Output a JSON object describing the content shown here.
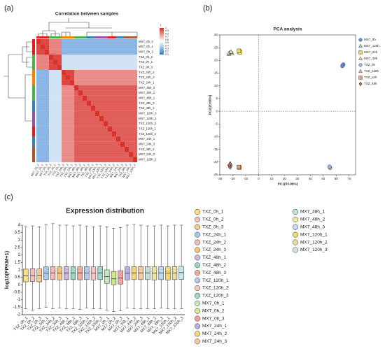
{
  "chart_data": [
    {
      "type": "heatmap",
      "panel_label": "(a)",
      "title": "Correlation between samples",
      "labels": [
        "MX7_0h_2",
        "MX7_0h_1",
        "MX7_0h_3",
        "TXZ_0h_2",
        "TXZ_0h_1",
        "TXZ_0h_3",
        "TXZ_24h_2",
        "TXZ_24h_3",
        "TXZ_24h_1",
        "MX7_48h_3",
        "MX7_48h_2",
        "MX7_48h_1",
        "TXZ_48h_3",
        "TXZ_48h_1",
        "MX7_120h_3",
        "MX7_120h_1",
        "TXZ_120h_3",
        "TXZ_120h_1",
        "TXZ_120h_2",
        "MX7_24h_1",
        "MX7_24h_3",
        "TXZ_48h_2",
        "MX7_24h_2",
        "MX7_120h_2"
      ],
      "group_colors": [
        "#e41a1c",
        "#e41a1c",
        "#e41a1c",
        "#4daf4a",
        "#4daf4a",
        "#4daf4a",
        "#ff7f00",
        "#ff7f00",
        "#ff7f00",
        "#4daf4a",
        "#4daf4a",
        "#4daf4a",
        "#377eb8",
        "#377eb8",
        "#984ea3",
        "#984ea3",
        "#984ea3",
        "#e41a1c",
        "#e41a1c",
        "#377eb8",
        "#377eb8",
        "#a65628",
        "#a65628",
        "#a65628"
      ],
      "values": [
        [
          1,
          0.95,
          0.95,
          0.82,
          0.82,
          0.82,
          0.3,
          0.3,
          0.3,
          0.3,
          0.3,
          0.3,
          0.3,
          0.3,
          0.3,
          0.3,
          0.3,
          0.3,
          0.3,
          0.3,
          0.3,
          0.3,
          0.3,
          0.3
        ],
        [
          0.95,
          1,
          0.95,
          0.82,
          0.82,
          0.82,
          0.3,
          0.3,
          0.3,
          0.3,
          0.3,
          0.3,
          0.3,
          0.3,
          0.3,
          0.3,
          0.3,
          0.3,
          0.3,
          0.3,
          0.3,
          0.3,
          0.3,
          0.3
        ],
        [
          0.95,
          0.95,
          1,
          0.82,
          0.82,
          0.82,
          0.3,
          0.3,
          0.3,
          0.3,
          0.3,
          0.3,
          0.3,
          0.3,
          0.3,
          0.3,
          0.3,
          0.3,
          0.3,
          0.3,
          0.3,
          0.3,
          0.3,
          0.3
        ],
        [
          0.82,
          0.82,
          0.82,
          1,
          0.95,
          0.95,
          0.45,
          0.45,
          0.45,
          0.45,
          0.45,
          0.45,
          0.45,
          0.45,
          0.45,
          0.45,
          0.45,
          0.45,
          0.45,
          0.45,
          0.45,
          0.45,
          0.45,
          0.45
        ],
        [
          0.82,
          0.82,
          0.82,
          0.95,
          1,
          0.95,
          0.45,
          0.45,
          0.45,
          0.45,
          0.45,
          0.45,
          0.45,
          0.45,
          0.45,
          0.45,
          0.45,
          0.45,
          0.45,
          0.45,
          0.45,
          0.45,
          0.45,
          0.45
        ],
        [
          0.82,
          0.82,
          0.82,
          0.95,
          0.95,
          1,
          0.45,
          0.45,
          0.45,
          0.45,
          0.45,
          0.45,
          0.45,
          0.45,
          0.45,
          0.45,
          0.45,
          0.45,
          0.45,
          0.45,
          0.45,
          0.45,
          0.45,
          0.45
        ],
        [
          0.3,
          0.3,
          0.3,
          0.45,
          0.45,
          0.45,
          1,
          0.95,
          0.95,
          0.8,
          0.8,
          0.8,
          0.8,
          0.8,
          0.8,
          0.8,
          0.8,
          0.8,
          0.8,
          0.8,
          0.8,
          0.8,
          0.8,
          0.8
        ],
        [
          0.3,
          0.3,
          0.3,
          0.45,
          0.45,
          0.45,
          0.95,
          1,
          0.95,
          0.8,
          0.8,
          0.8,
          0.8,
          0.8,
          0.8,
          0.8,
          0.8,
          0.8,
          0.8,
          0.8,
          0.8,
          0.8,
          0.8,
          0.8
        ],
        [
          0.3,
          0.3,
          0.3,
          0.45,
          0.45,
          0.45,
          0.95,
          0.95,
          1,
          0.8,
          0.8,
          0.8,
          0.8,
          0.8,
          0.8,
          0.8,
          0.8,
          0.8,
          0.8,
          0.8,
          0.8,
          0.8,
          0.8,
          0.8
        ],
        [
          0.3,
          0.3,
          0.3,
          0.45,
          0.45,
          0.45,
          0.8,
          0.8,
          0.8,
          1,
          0.9,
          0.9,
          0.9,
          0.9,
          0.9,
          0.9,
          0.9,
          0.9,
          0.9,
          0.9,
          0.9,
          0.9,
          0.9,
          0.9
        ],
        [
          0.3,
          0.3,
          0.3,
          0.45,
          0.45,
          0.45,
          0.8,
          0.8,
          0.8,
          0.9,
          1,
          0.9,
          0.9,
          0.9,
          0.9,
          0.9,
          0.9,
          0.9,
          0.9,
          0.9,
          0.9,
          0.9,
          0.9,
          0.9
        ],
        [
          0.3,
          0.3,
          0.3,
          0.45,
          0.45,
          0.45,
          0.8,
          0.8,
          0.8,
          0.9,
          0.9,
          1,
          0.9,
          0.9,
          0.9,
          0.9,
          0.9,
          0.9,
          0.9,
          0.9,
          0.9,
          0.9,
          0.9,
          0.9
        ],
        [
          0.3,
          0.3,
          0.3,
          0.45,
          0.45,
          0.45,
          0.8,
          0.8,
          0.8,
          0.9,
          0.9,
          0.9,
          1,
          0.9,
          0.9,
          0.9,
          0.9,
          0.9,
          0.9,
          0.9,
          0.9,
          0.9,
          0.9,
          0.9
        ],
        [
          0.3,
          0.3,
          0.3,
          0.45,
          0.45,
          0.45,
          0.8,
          0.8,
          0.8,
          0.9,
          0.9,
          0.9,
          0.9,
          1,
          0.9,
          0.9,
          0.9,
          0.9,
          0.9,
          0.9,
          0.9,
          0.9,
          0.9,
          0.9
        ],
        [
          0.3,
          0.3,
          0.3,
          0.45,
          0.45,
          0.45,
          0.8,
          0.8,
          0.8,
          0.9,
          0.9,
          0.9,
          0.9,
          0.9,
          1,
          0.9,
          0.9,
          0.9,
          0.9,
          0.9,
          0.9,
          0.9,
          0.9,
          0.9
        ],
        [
          0.3,
          0.3,
          0.3,
          0.45,
          0.45,
          0.45,
          0.8,
          0.8,
          0.8,
          0.9,
          0.9,
          0.9,
          0.9,
          0.9,
          0.9,
          1,
          0.9,
          0.9,
          0.9,
          0.9,
          0.9,
          0.9,
          0.9,
          0.9
        ],
        [
          0.3,
          0.3,
          0.3,
          0.45,
          0.45,
          0.45,
          0.8,
          0.8,
          0.8,
          0.9,
          0.9,
          0.9,
          0.9,
          0.9,
          0.9,
          0.9,
          1,
          0.9,
          0.9,
          0.9,
          0.9,
          0.9,
          0.9,
          0.9
        ],
        [
          0.3,
          0.3,
          0.3,
          0.45,
          0.45,
          0.45,
          0.8,
          0.8,
          0.8,
          0.9,
          0.9,
          0.9,
          0.9,
          0.9,
          0.9,
          0.9,
          0.9,
          1,
          0.9,
          0.9,
          0.9,
          0.9,
          0.9,
          0.9
        ],
        [
          0.3,
          0.3,
          0.3,
          0.45,
          0.45,
          0.45,
          0.8,
          0.8,
          0.8,
          0.9,
          0.9,
          0.9,
          0.9,
          0.9,
          0.9,
          0.9,
          0.9,
          0.9,
          1,
          0.9,
          0.9,
          0.9,
          0.9,
          0.9
        ],
        [
          0.3,
          0.3,
          0.3,
          0.45,
          0.45,
          0.45,
          0.8,
          0.8,
          0.8,
          0.9,
          0.9,
          0.9,
          0.9,
          0.9,
          0.9,
          0.9,
          0.9,
          0.9,
          0.9,
          1,
          0.9,
          0.9,
          0.9,
          0.9
        ],
        [
          0.3,
          0.3,
          0.3,
          0.45,
          0.45,
          0.45,
          0.8,
          0.8,
          0.8,
          0.9,
          0.9,
          0.9,
          0.9,
          0.9,
          0.9,
          0.9,
          0.9,
          0.9,
          0.9,
          0.9,
          1,
          0.9,
          0.9,
          0.9
        ],
        [
          0.3,
          0.3,
          0.3,
          0.45,
          0.45,
          0.45,
          0.8,
          0.8,
          0.8,
          0.9,
          0.9,
          0.9,
          0.9,
          0.9,
          0.9,
          0.9,
          0.9,
          0.9,
          0.9,
          0.9,
          0.9,
          1,
          0.9,
          0.9
        ],
        [
          0.3,
          0.3,
          0.3,
          0.45,
          0.45,
          0.45,
          0.8,
          0.8,
          0.8,
          0.9,
          0.9,
          0.9,
          0.9,
          0.9,
          0.9,
          0.9,
          0.9,
          0.9,
          0.9,
          0.9,
          0.9,
          0.9,
          1,
          0.9
        ],
        [
          0.3,
          0.3,
          0.3,
          0.45,
          0.45,
          0.45,
          0.8,
          0.8,
          0.8,
          0.9,
          0.9,
          0.9,
          0.9,
          0.9,
          0.9,
          0.9,
          0.9,
          0.9,
          0.9,
          0.9,
          0.9,
          0.9,
          0.9,
          1
        ]
      ],
      "zlim": [
        0.1,
        1
      ],
      "colorscale": [
        "#2f7bd0",
        "#ffffff",
        "#d9312b"
      ],
      "legend_title": "r",
      "colorbar_ticks": [
        1,
        0.9,
        0.8,
        0.7,
        0.6,
        0.5,
        0.4,
        0.3,
        0.2,
        0.1
      ]
    },
    {
      "type": "scatter",
      "panel_label": "(b)",
      "title": "PCA analysis",
      "xlabel": "PC1(53.99%)",
      "ylabel": "PC2(20.95%)",
      "xlim": [
        -30,
        75
      ],
      "ylim": [
        -25,
        30
      ],
      "xticks": [
        -30,
        -20,
        -10,
        0,
        10,
        20,
        30,
        40,
        50,
        60,
        70
      ],
      "yticks": [
        -25,
        -20,
        -15,
        -10,
        -5,
        0,
        5,
        10,
        15,
        20,
        25,
        30
      ],
      "zero_lines": true,
      "series": [
        {
          "name": "MX7_0h",
          "color": "#5b8fd6",
          "marker": "circle",
          "x": [
            65,
            65.5,
            64.8
          ],
          "y": [
            18,
            18.4,
            17.8
          ]
        },
        {
          "name": "MX7_120h",
          "color": "#a8d4ee",
          "marker": "triangle",
          "x": [
            -23,
            -22.5,
            -22.8
          ],
          "y": [
            22.5,
            23,
            22.7
          ]
        },
        {
          "name": "MX7_24h",
          "color": "#f6d84a",
          "marker": "square",
          "x": [
            -15,
            -14.5,
            -15.2
          ],
          "y": [
            23.5,
            23.2,
            23.8
          ]
        },
        {
          "name": "MX7_48h",
          "color": "#efe48a",
          "marker": "triangle",
          "x": [
            -21,
            -20.5,
            -21.3
          ],
          "y": [
            23,
            22.8,
            23.3
          ]
        },
        {
          "name": "TXZ_0h",
          "color": "#9ab8e0",
          "marker": "circle",
          "x": [
            55,
            55.3,
            54.8
          ],
          "y": [
            -22,
            -22.3,
            -21.8
          ]
        },
        {
          "name": "TXZ_120h",
          "color": "#f4b6c2",
          "marker": "triangle",
          "x": [
            -22,
            -21.6,
            -22.3
          ],
          "y": [
            -20.5,
            -21,
            -20.8
          ]
        },
        {
          "name": "TXZ_24h",
          "color": "#e8a070",
          "marker": "square",
          "x": [
            -15,
            -14.8,
            -15.3
          ],
          "y": [
            -22,
            -22.2,
            -21.9
          ]
        },
        {
          "name": "TXZ_48h",
          "color": "#b5655a",
          "marker": "diamond",
          "x": [
            -22.5,
            -22,
            -22.7
          ],
          "y": [
            -21.5,
            -22,
            -21.2
          ]
        }
      ]
    },
    {
      "type": "box",
      "panel_label": "(c)",
      "title": "Expression distribution",
      "ylabel": "log10(FPKM+1)",
      "ylim": [
        -2,
        4
      ],
      "yticks": [
        -2,
        -1.5,
        -1,
        -0.5,
        0,
        0.5,
        1,
        1.5,
        2,
        2.5,
        3,
        3.5,
        4
      ],
      "boxes": [
        {
          "name": "TXZ_0h_1",
          "color": "#f9e27d",
          "whisker_low": -1.6,
          "q1": 0.2,
          "median": 0.6,
          "q3": 1.05,
          "whisker_high": 3.9
        },
        {
          "name": "TXZ_0h_2",
          "color": "#f6c0c0",
          "whisker_low": -1.7,
          "q1": 0.22,
          "median": 0.65,
          "q3": 1.08,
          "whisker_high": 3.95
        },
        {
          "name": "TXZ_0h_3",
          "color": "#f8c88a",
          "whisker_low": -1.6,
          "q1": 0.2,
          "median": 0.62,
          "q3": 1.06,
          "whisker_high": 3.9
        },
        {
          "name": "TXZ_24h_1",
          "color": "#a9c8e8",
          "whisker_low": -1.5,
          "q1": 0.35,
          "median": 0.78,
          "q3": 1.2,
          "whisker_high": 4.05
        },
        {
          "name": "TXZ_24h_2",
          "color": "#f4b8b8",
          "whisker_low": -1.6,
          "q1": 0.35,
          "median": 0.8,
          "q3": 1.22,
          "whisker_high": 4.1
        },
        {
          "name": "TXZ_24h_3",
          "color": "#f7c27a",
          "whisker_low": -1.55,
          "q1": 0.33,
          "median": 0.78,
          "q3": 1.2,
          "whisker_high": 4
        },
        {
          "name": "TXZ_48h_1",
          "color": "#c8b8e0",
          "whisker_low": -1.6,
          "q1": 0.35,
          "median": 0.8,
          "q3": 1.22,
          "whisker_high": 4
        },
        {
          "name": "TXZ_48h_2",
          "color": "#9fd4c0",
          "whisker_low": -1.6,
          "q1": 0.35,
          "median": 0.8,
          "q3": 1.22,
          "whisker_high": 3.95
        },
        {
          "name": "TXZ_48h_3",
          "color": "#f4a8a0",
          "whisker_low": -1.65,
          "q1": 0.34,
          "median": 0.8,
          "q3": 1.2,
          "whisker_high": 4
        },
        {
          "name": "TXZ_120h_1",
          "color": "#bcc8ea",
          "whisker_low": -1.55,
          "q1": 0.35,
          "median": 0.8,
          "q3": 1.22,
          "whisker_high": 3.95
        },
        {
          "name": "TXZ_120h_2",
          "color": "#f6c6c6",
          "whisker_low": -1.6,
          "q1": 0.33,
          "median": 0.78,
          "q3": 1.2,
          "whisker_high": 3.9
        },
        {
          "name": "TXZ_120h_3",
          "color": "#9fd8c8",
          "whisker_low": -1.6,
          "q1": 0.35,
          "median": 0.8,
          "q3": 1.22,
          "whisker_high": 3.95
        },
        {
          "name": "MX7_0h_1",
          "color": "#c8e6c0",
          "whisker_low": -1.7,
          "q1": 0.1,
          "median": 0.55,
          "q3": 1.0,
          "whisker_high": 3.9
        },
        {
          "name": "MX7_0h_2",
          "color": "#d0e88a",
          "whisker_low": -1.8,
          "q1": 0.0,
          "median": 0.4,
          "q3": 0.9,
          "whisker_high": 3.8
        },
        {
          "name": "MX7_0h_3",
          "color": "#f6a0a0",
          "whisker_low": -1.75,
          "q1": 0.05,
          "median": 0.45,
          "q3": 0.95,
          "whisker_high": 3.85
        },
        {
          "name": "MX7_24h_1",
          "color": "#b8b0e0",
          "whisker_low": -1.55,
          "q1": 0.33,
          "median": 0.78,
          "q3": 1.2,
          "whisker_high": 4
        },
        {
          "name": "MX7_24h_2",
          "color": "#f7d47a",
          "whisker_low": -1.6,
          "q1": 0.35,
          "median": 0.8,
          "q3": 1.22,
          "whisker_high": 4.05
        },
        {
          "name": "MX7_24h_3",
          "color": "#f6c8a0",
          "whisker_low": -1.6,
          "q1": 0.35,
          "median": 0.8,
          "q3": 1.22,
          "whisker_high": 4
        },
        {
          "name": "MX7_48h_1",
          "color": "#bfe3d8",
          "whisker_low": -1.6,
          "q1": 0.35,
          "median": 0.8,
          "q3": 1.22,
          "whisker_high": 3.95
        },
        {
          "name": "MX7_48h_2",
          "color": "#e8e8a0",
          "whisker_low": -1.6,
          "q1": 0.33,
          "median": 0.78,
          "q3": 1.2,
          "whisker_high": 3.95
        },
        {
          "name": "MX7_48h_3",
          "color": "#c0d8f0",
          "whisker_low": -1.55,
          "q1": 0.35,
          "median": 0.8,
          "q3": 1.22,
          "whisker_high": 4
        },
        {
          "name": "MX7_120h_1",
          "color": "#f2d66e",
          "whisker_low": -1.6,
          "q1": 0.33,
          "median": 0.78,
          "q3": 1.2,
          "whisker_high": 3.95
        },
        {
          "name": "MX7_120h_2",
          "color": "#e8e0a0",
          "whisker_low": -1.6,
          "q1": 0.35,
          "median": 0.8,
          "q3": 1.22,
          "whisker_high": 4
        },
        {
          "name": "MX7_120h_3",
          "color": "#c8e8e8",
          "whisker_low": -1.6,
          "q1": 0.36,
          "median": 0.82,
          "q3": 1.24,
          "whisker_high": 4
        }
      ]
    }
  ]
}
